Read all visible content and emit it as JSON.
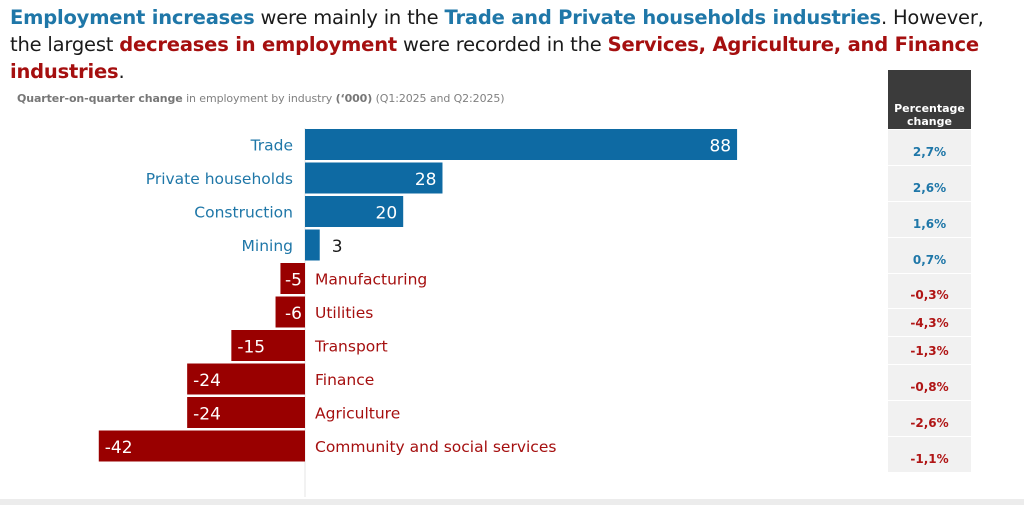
{
  "headline": {
    "segments": [
      {
        "text": "Employment increases",
        "style": "pos"
      },
      {
        "text": " were mainly in the ",
        "style": "plain"
      },
      {
        "text": "Trade and Private households industries",
        "style": "pos"
      },
      {
        "text": ". However, the largest ",
        "style": "plain"
      },
      {
        "text": "decreases in employment",
        "style": "neg"
      },
      {
        "text": " were recorded in the ",
        "style": "plain"
      },
      {
        "text": "Services, Agriculture, and Finance industries",
        "style": "neg"
      },
      {
        "text": ".",
        "style": "plain"
      }
    ]
  },
  "subtitle": {
    "bold1": "Quarter-on-quarter change",
    "text1": " in employment by industry ",
    "bold2": "(‘000)",
    "text2": " (Q1:2025 and Q2:2025)"
  },
  "colors": {
    "positive": "#0e6aa3",
    "negative": "#990000",
    "positive_label": "#1f77a8",
    "negative_label": "#a50f0f",
    "header_bg": "#3b3b3b",
    "cell_bg": "#f1f1f1"
  },
  "percentage_table": {
    "header": "Percentage change",
    "values": [
      "2,7%",
      "2,6%",
      "1,6%",
      "0,7%",
      "-0,3%",
      "-4,3%",
      "-1,3%",
      "-0,8%",
      "-2,6%",
      "-1,1%"
    ]
  },
  "chart_data": {
    "type": "bar",
    "orientation": "horizontal",
    "title": "Quarter-on-quarter change in employment by industry ('000) (Q1:2025 and Q2:2025)",
    "xlabel": "",
    "ylabel": "",
    "grid": false,
    "xlim": [
      -42,
      88
    ],
    "categories": [
      "Trade",
      "Private households",
      "Construction",
      "Mining",
      "Manufacturing",
      "Utilities",
      "Transport",
      "Finance",
      "Agriculture",
      "Community and social services"
    ],
    "values": [
      88,
      28,
      20,
      3,
      -5,
      -6,
      -15,
      -24,
      -24,
      -42
    ],
    "data_labels": [
      "88",
      "28",
      "20",
      "3",
      "-5",
      "-6",
      "-15",
      "-24",
      "-24",
      "-42"
    ],
    "percentage_change": [
      "2,7%",
      "2,6%",
      "1,6%",
      "0,7%",
      "-0,3%",
      "-4,3%",
      "-1,3%",
      "-0,8%",
      "-2,6%",
      "-1,1%"
    ]
  }
}
